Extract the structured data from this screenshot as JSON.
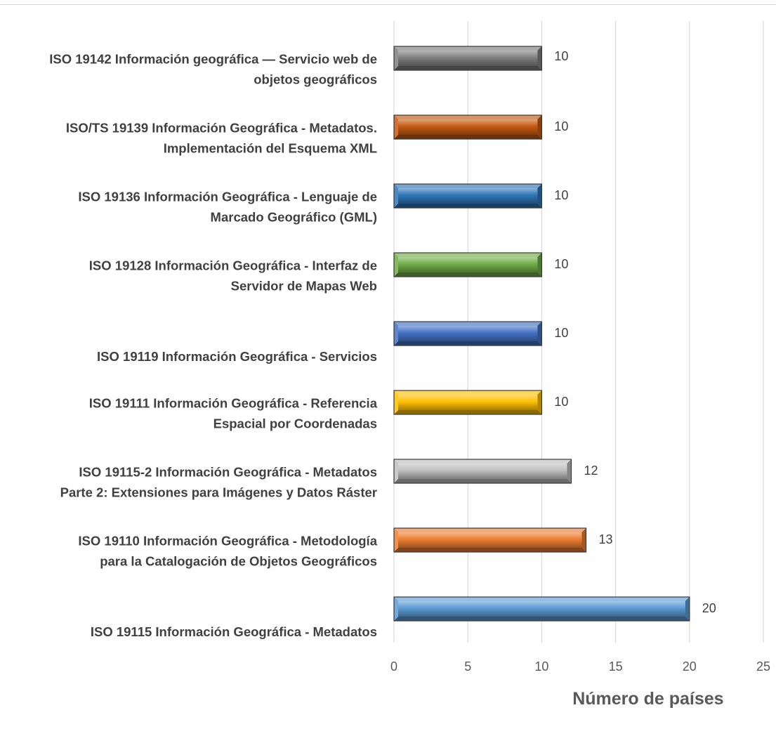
{
  "chart_data": {
    "type": "bar",
    "orientation": "horizontal",
    "title": "",
    "xlabel": "Número de países",
    "ylabel": "",
    "xlim": [
      0,
      25
    ],
    "x_ticks": [
      "0",
      "5",
      "10",
      "15",
      "20",
      "25"
    ],
    "grid": "vertical",
    "legend": "none",
    "categories": [
      [
        "ISO 19142 Información geográfica — Servicio web de",
        "objetos geográficos"
      ],
      [
        "ISO/TS 19139 Información Geográfica - Metadatos.",
        "Implementación del Esquema XML"
      ],
      [
        "ISO 19136 Información Geográfica - Lenguaje de",
        "Marcado Geográfico (GML)"
      ],
      [
        "ISO 19128 Información Geográfica - Interfaz de",
        "Servidor de Mapas Web"
      ],
      [
        "ISO 19119 Información Geográfica - Servicios"
      ],
      [
        "ISO 19111 Información Geográfica - Referencia",
        "Espacial por Coordenadas"
      ],
      [
        "ISO 19115-2 Información Geográfica - Metadatos",
        "Parte 2: Extensiones para Imágenes y Datos Ráster"
      ],
      [
        "ISO 19110 Información Geográfica - Metodología",
        "para la Catalogación de Objetos Geográficos"
      ],
      [
        "ISO 19115 Información Geográfica - Metadatos"
      ]
    ],
    "values": [
      10,
      10,
      10,
      10,
      10,
      10,
      12,
      13,
      20
    ],
    "data_labels": [
      "10",
      "10",
      "10",
      "10",
      "10",
      "10",
      "12",
      "13",
      "20"
    ],
    "colors": [
      "#7f7f7f",
      "#c55a11",
      "#2e75b6",
      "#70ad47",
      "#4472c4",
      "#ffc000",
      "#bfbfbf",
      "#ed7d31",
      "#5b9bd5"
    ]
  }
}
